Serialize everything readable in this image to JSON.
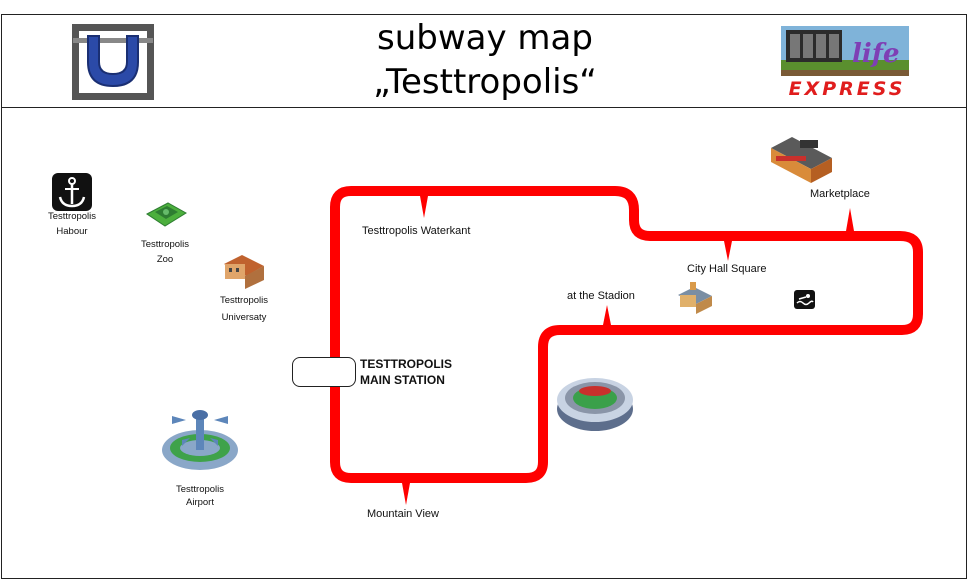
{
  "header": {
    "title_line1": "subway map",
    "title_line2": "„Testtropolis“",
    "brand_word": "EXPRESS"
  },
  "line": {
    "color": "#ff0000"
  },
  "stations": {
    "waterkant": "Testtropolis Waterkant",
    "marketplace": "Marketplace",
    "city_hall": "City Hall Square",
    "stadion": "at the Stadion",
    "main_line1": "TESTTROPOLIS",
    "main_line2": "MAIN STATION",
    "mountain_view": "Mountain View"
  },
  "landmarks": {
    "habour_line1": "Testtropolis",
    "habour_line2": "Habour",
    "zoo_line1": "Testtropolis",
    "zoo_line2": "Zoo",
    "university_line1": "Testtropolis",
    "university_line2": "Universaty",
    "airport_line1": "Testtropolis",
    "airport_line2": "Airport"
  }
}
